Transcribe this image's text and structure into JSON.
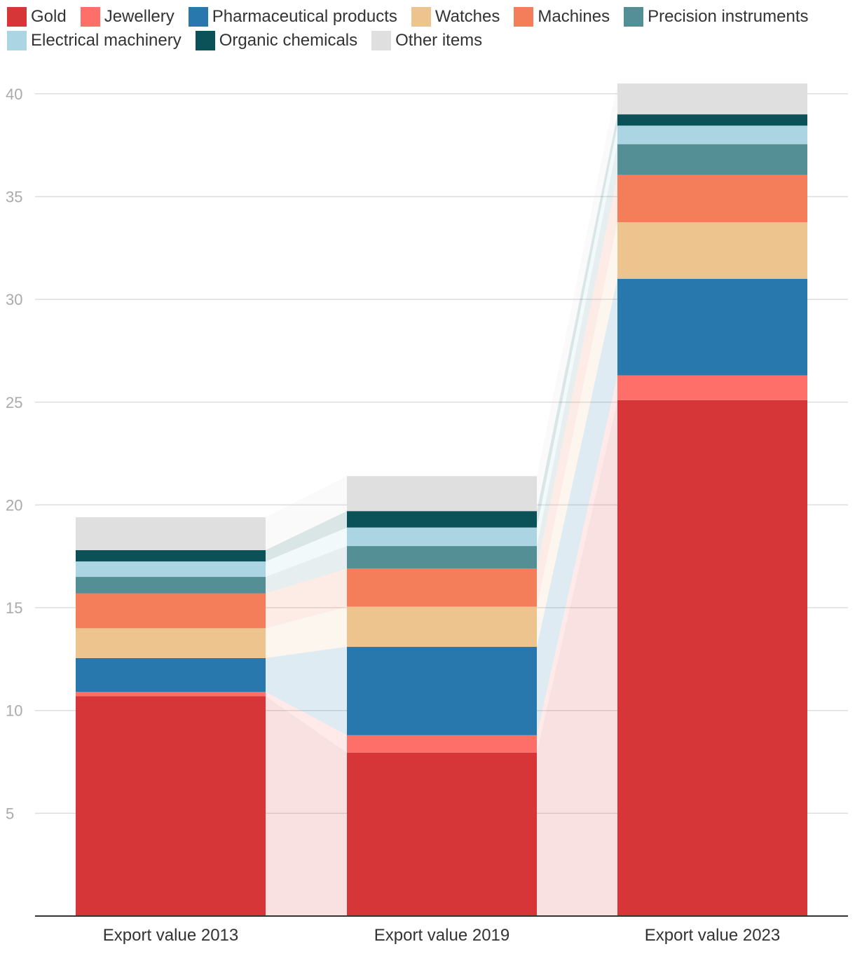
{
  "chart_data": {
    "type": "bar",
    "stacked": true,
    "title": "",
    "xlabel": "",
    "ylabel": "",
    "ylim": [
      0,
      40
    ],
    "yticks": [
      5,
      10,
      15,
      20,
      25,
      30,
      35,
      40
    ],
    "categories": [
      "Export value 2013",
      "Export value 2019",
      "Export value 2023"
    ],
    "legend_position": "top",
    "series": [
      {
        "name": "Gold",
        "color": "#d63638",
        "values": [
          10.7,
          7.95,
          25.1
        ]
      },
      {
        "name": "Jewellery",
        "color": "#ff6f69",
        "values": [
          0.2,
          0.85,
          1.2
        ]
      },
      {
        "name": "Pharmaceutical products",
        "color": "#2878ae",
        "values": [
          1.65,
          4.3,
          4.7
        ]
      },
      {
        "name": "Watches",
        "color": "#eec48e",
        "values": [
          1.45,
          1.95,
          2.75
        ]
      },
      {
        "name": "Machines",
        "color": "#f47e59",
        "values": [
          1.7,
          1.85,
          2.3
        ]
      },
      {
        "name": "Precision instruments",
        "color": "#558f96",
        "values": [
          0.8,
          1.1,
          1.5
        ]
      },
      {
        "name": "Electrical machinery",
        "color": "#abd5e3",
        "values": [
          0.75,
          0.9,
          0.9
        ]
      },
      {
        "name": "Organic chemicals",
        "color": "#0a5257",
        "values": [
          0.55,
          0.8,
          0.55
        ]
      },
      {
        "name": "Other items",
        "color": "#dfdfdf",
        "values": [
          1.6,
          1.7,
          1.5
        ]
      }
    ]
  }
}
